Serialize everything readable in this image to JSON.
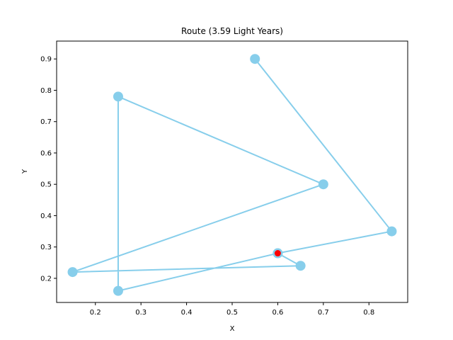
{
  "chart_data": {
    "type": "line",
    "title": "Route (3.59 Light Years)",
    "xlabel": "X",
    "ylabel": "Y",
    "xlim": [
      0.115,
      0.885
    ],
    "ylim": [
      0.123,
      0.957
    ],
    "xticks": [
      0.2,
      0.3,
      0.4,
      0.5,
      0.6,
      0.7,
      0.8
    ],
    "xtick_labels": [
      "0.2",
      "0.3",
      "0.4",
      "0.5",
      "0.6",
      "0.7",
      "0.8"
    ],
    "yticks": [
      0.2,
      0.3,
      0.4,
      0.5,
      0.6,
      0.7,
      0.8,
      0.9
    ],
    "ytick_labels": [
      "0.2",
      "0.3",
      "0.4",
      "0.5",
      "0.6",
      "0.7",
      "0.8",
      "0.9"
    ],
    "grid": false,
    "route_color": "#87CEEB",
    "start_color": "#FF0000",
    "series": [
      {
        "x": [
          0.6,
          0.65,
          0.15,
          0.7,
          0.25,
          0.25,
          0.6,
          0.85,
          0.55
        ],
        "y": [
          0.28,
          0.24,
          0.22,
          0.5,
          0.78,
          0.16,
          0.28,
          0.35,
          0.9
        ]
      }
    ],
    "start_point": {
      "x": 0.6,
      "y": 0.28
    }
  }
}
